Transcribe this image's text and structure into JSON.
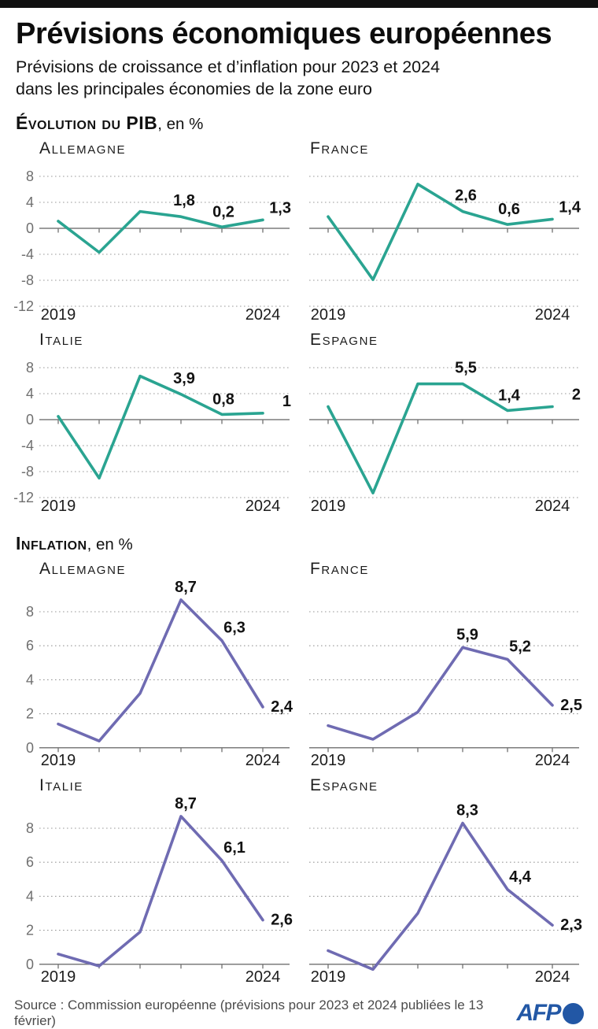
{
  "header": {
    "title": "Prévisions économiques européennes",
    "subtitle_line1": "Prévisions de croissance et d’inflation pour 2023 et 2024",
    "subtitle_line2": "dans les principales économies de la zone euro"
  },
  "sections": {
    "gdp": {
      "heading": "Évolution du PIB",
      "suffix": ", en %"
    },
    "inflation": {
      "heading": "Inflation",
      "suffix": ", en %"
    }
  },
  "chart_data": [
    {
      "type": "line",
      "section": "gdp",
      "country": "Allemagne",
      "x": [
        2019,
        2020,
        2021,
        2022,
        2023,
        2024
      ],
      "values": [
        1.1,
        -3.7,
        2.6,
        1.8,
        0.2,
        1.3
      ],
      "point_labels": [
        "",
        "",
        "",
        "1,8",
        "0,2",
        "1,3"
      ],
      "ylim": [
        -12,
        8
      ],
      "yticks": [
        8,
        4,
        0,
        -4,
        -8,
        -12
      ],
      "baseline": 0,
      "show_ylabels": true,
      "x_labels": [
        "2019",
        "2024"
      ],
      "color": "#2aa491"
    },
    {
      "type": "line",
      "section": "gdp",
      "country": "France",
      "x": [
        2019,
        2020,
        2021,
        2022,
        2023,
        2024
      ],
      "values": [
        1.8,
        -7.9,
        6.8,
        2.6,
        0.6,
        1.4
      ],
      "point_labels": [
        "",
        "",
        "",
        "2,6",
        "0,6",
        "1,4"
      ],
      "ylim": [
        -12,
        8
      ],
      "yticks": [
        8,
        4,
        0,
        -4,
        -8,
        -12
      ],
      "baseline": 0,
      "show_ylabels": false,
      "x_labels": [
        "2019",
        "2024"
      ],
      "color": "#2aa491"
    },
    {
      "type": "line",
      "section": "gdp",
      "country": "Italie",
      "x": [
        2019,
        2020,
        2021,
        2022,
        2023,
        2024
      ],
      "values": [
        0.5,
        -9.0,
        6.7,
        3.9,
        0.8,
        1.0
      ],
      "point_labels": [
        "",
        "",
        "",
        "3,9",
        "0,8",
        "1"
      ],
      "ylim": [
        -12,
        8
      ],
      "yticks": [
        8,
        4,
        0,
        -4,
        -8,
        -12
      ],
      "baseline": 0,
      "show_ylabels": true,
      "x_labels": [
        "2019",
        "2024"
      ],
      "color": "#2aa491"
    },
    {
      "type": "line",
      "section": "gdp",
      "country": "Espagne",
      "x": [
        2019,
        2020,
        2021,
        2022,
        2023,
        2024
      ],
      "values": [
        2.0,
        -11.3,
        5.5,
        5.5,
        1.4,
        2.0
      ],
      "point_labels": [
        "",
        "",
        "",
        "5,5",
        "1,4",
        "2"
      ],
      "ylim": [
        -12,
        8
      ],
      "yticks": [
        8,
        4,
        0,
        -4,
        -8,
        -12
      ],
      "baseline": 0,
      "show_ylabels": false,
      "x_labels": [
        "2019",
        "2024"
      ],
      "color": "#2aa491"
    },
    {
      "type": "line",
      "section": "inflation",
      "country": "Allemagne",
      "x": [
        2019,
        2020,
        2021,
        2022,
        2023,
        2024
      ],
      "values": [
        1.4,
        0.4,
        3.2,
        8.7,
        6.3,
        2.4
      ],
      "point_labels": [
        "",
        "",
        "",
        "8,7",
        "6,3",
        "2,4"
      ],
      "ylim": [
        -0.5,
        9
      ],
      "yticks": [
        8,
        6,
        4,
        2,
        0
      ],
      "baseline": 0,
      "show_ylabels": true,
      "x_labels": [
        "2019",
        "2024"
      ],
      "color": "#6f6bb2"
    },
    {
      "type": "line",
      "section": "inflation",
      "country": "France",
      "x": [
        2019,
        2020,
        2021,
        2022,
        2023,
        2024
      ],
      "values": [
        1.3,
        0.5,
        2.1,
        5.9,
        5.2,
        2.5
      ],
      "point_labels": [
        "",
        "",
        "",
        "5,9",
        "5,2",
        "2,5"
      ],
      "ylim": [
        -0.5,
        9
      ],
      "yticks": [
        8,
        6,
        4,
        2,
        0
      ],
      "baseline": 0,
      "show_ylabels": false,
      "x_labels": [
        "2019",
        "2024"
      ],
      "color": "#6f6bb2"
    },
    {
      "type": "line",
      "section": "inflation",
      "country": "Italie",
      "x": [
        2019,
        2020,
        2021,
        2022,
        2023,
        2024
      ],
      "values": [
        0.6,
        -0.1,
        1.9,
        8.7,
        6.1,
        2.6
      ],
      "point_labels": [
        "",
        "",
        "",
        "8,7",
        "6,1",
        "2,6"
      ],
      "ylim": [
        -0.5,
        9
      ],
      "yticks": [
        8,
        6,
        4,
        2,
        0
      ],
      "baseline": 0,
      "show_ylabels": true,
      "x_labels": [
        "2019",
        "2024"
      ],
      "color": "#6f6bb2"
    },
    {
      "type": "line",
      "section": "inflation",
      "country": "Espagne",
      "x": [
        2019,
        2020,
        2021,
        2022,
        2023,
        2024
      ],
      "values": [
        0.8,
        -0.3,
        3.0,
        8.3,
        4.4,
        2.3
      ],
      "point_labels": [
        "",
        "",
        "",
        "8,3",
        "4,4",
        "2,3"
      ],
      "ylim": [
        -0.5,
        9
      ],
      "yticks": [
        8,
        6,
        4,
        2,
        0
      ],
      "baseline": 0,
      "show_ylabels": false,
      "x_labels": [
        "2019",
        "2024"
      ],
      "color": "#6f6bb2"
    }
  ],
  "footer": {
    "source": "Source : Commission européenne (prévisions pour 2023 et 2024 publiées le 13 février)",
    "logo_text": "AFP",
    "logo_color": "#2257a5"
  }
}
